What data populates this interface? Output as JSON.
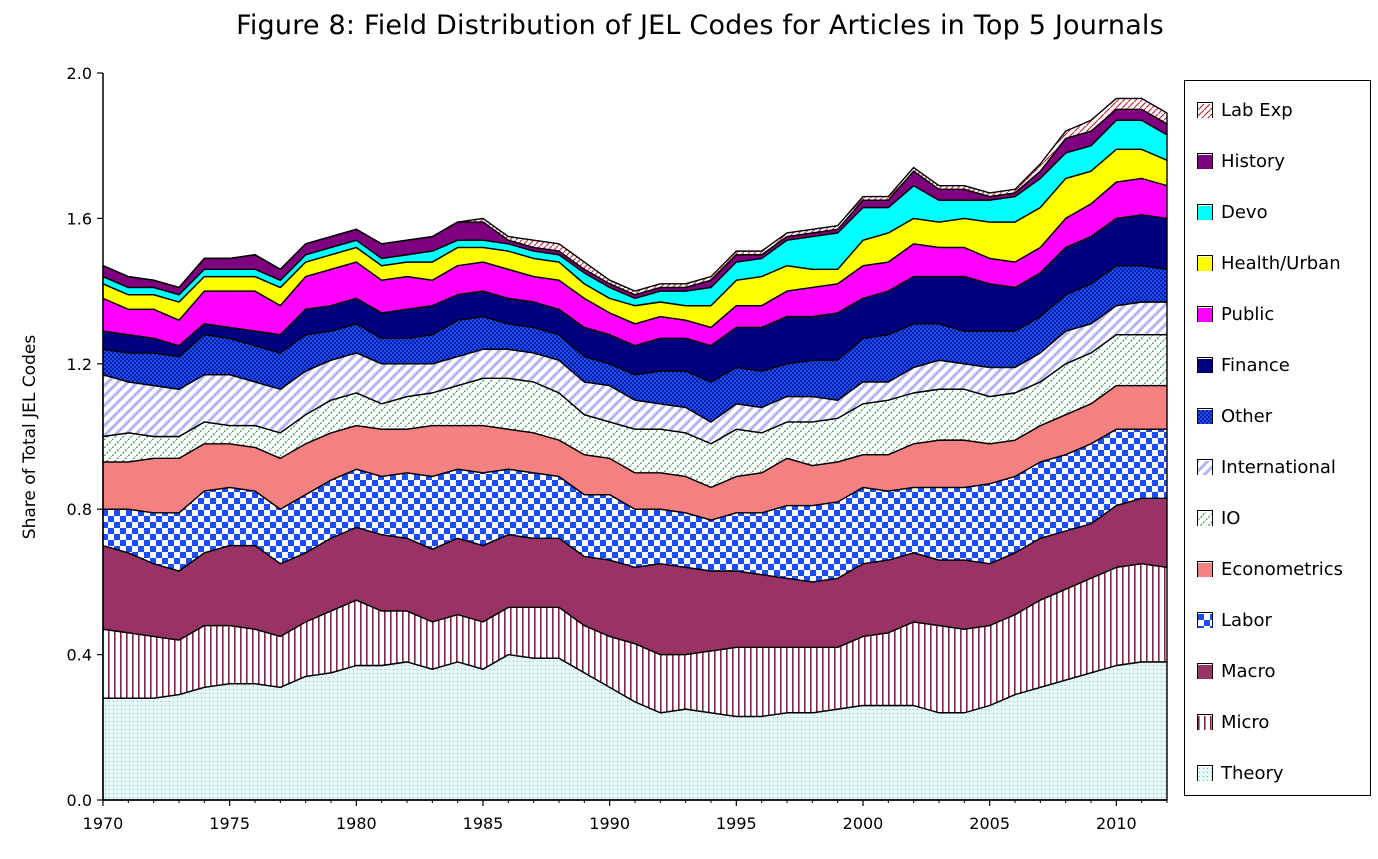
{
  "chart_data": {
    "type": "area",
    "stacked": true,
    "title": "Figure 8: Field Distribution of JEL Codes for Articles in Top 5 Journals",
    "ylabel": "Share of Total JEL Codes",
    "xlabel": "",
    "xlim": [
      1970,
      2012
    ],
    "ylim": [
      0,
      2.0
    ],
    "x_ticks": [
      "1970",
      "1975",
      "1980",
      "1985",
      "1990",
      "1995",
      "2000",
      "2005",
      "2010"
    ],
    "y_ticks": [
      "0.0",
      "0.4",
      "0.8",
      "1.2",
      "1.6",
      "2.0"
    ],
    "legend_position": "right",
    "x": [
      1970,
      1971,
      1972,
      1973,
      1974,
      1975,
      1976,
      1977,
      1978,
      1979,
      1980,
      1981,
      1982,
      1983,
      1984,
      1985,
      1986,
      1987,
      1988,
      1989,
      1990,
      1991,
      1992,
      1993,
      1994,
      1995,
      1996,
      1997,
      1998,
      1999,
      2000,
      2001,
      2002,
      2003,
      2004,
      2005,
      2006,
      2007,
      2008,
      2009,
      2010,
      2011,
      2012
    ],
    "series": [
      {
        "name": "Theory",
        "values": [
          0.28,
          0.28,
          0.28,
          0.29,
          0.31,
          0.32,
          0.32,
          0.31,
          0.34,
          0.35,
          0.37,
          0.37,
          0.38,
          0.36,
          0.38,
          0.36,
          0.4,
          0.39,
          0.39,
          0.35,
          0.31,
          0.27,
          0.24,
          0.25,
          0.24,
          0.23,
          0.23,
          0.24,
          0.24,
          0.25,
          0.26,
          0.26,
          0.26,
          0.24,
          0.24,
          0.26,
          0.29,
          0.31,
          0.33,
          0.35,
          0.37,
          0.38,
          0.38
        ]
      },
      {
        "name": "Micro",
        "values": [
          0.19,
          0.18,
          0.17,
          0.15,
          0.17,
          0.16,
          0.15,
          0.14,
          0.15,
          0.17,
          0.18,
          0.15,
          0.14,
          0.13,
          0.13,
          0.13,
          0.13,
          0.14,
          0.14,
          0.13,
          0.14,
          0.16,
          0.16,
          0.15,
          0.17,
          0.19,
          0.19,
          0.18,
          0.18,
          0.17,
          0.19,
          0.2,
          0.23,
          0.24,
          0.23,
          0.22,
          0.22,
          0.24,
          0.25,
          0.26,
          0.27,
          0.27,
          0.26
        ]
      },
      {
        "name": "Macro",
        "values": [
          0.23,
          0.22,
          0.2,
          0.19,
          0.2,
          0.22,
          0.23,
          0.2,
          0.19,
          0.2,
          0.2,
          0.21,
          0.2,
          0.2,
          0.21,
          0.21,
          0.2,
          0.19,
          0.19,
          0.19,
          0.21,
          0.21,
          0.25,
          0.24,
          0.22,
          0.21,
          0.2,
          0.19,
          0.18,
          0.19,
          0.2,
          0.2,
          0.19,
          0.18,
          0.19,
          0.17,
          0.17,
          0.17,
          0.16,
          0.15,
          0.17,
          0.18,
          0.19
        ]
      },
      {
        "name": "Labor",
        "values": [
          0.1,
          0.12,
          0.14,
          0.16,
          0.17,
          0.16,
          0.15,
          0.15,
          0.16,
          0.16,
          0.16,
          0.16,
          0.18,
          0.2,
          0.19,
          0.2,
          0.18,
          0.18,
          0.17,
          0.17,
          0.18,
          0.16,
          0.15,
          0.15,
          0.14,
          0.16,
          0.17,
          0.2,
          0.21,
          0.21,
          0.21,
          0.19,
          0.18,
          0.2,
          0.2,
          0.22,
          0.21,
          0.21,
          0.21,
          0.22,
          0.21,
          0.19,
          0.19
        ]
      },
      {
        "name": "Econometrics",
        "values": [
          0.13,
          0.13,
          0.15,
          0.15,
          0.13,
          0.12,
          0.12,
          0.14,
          0.14,
          0.13,
          0.12,
          0.13,
          0.12,
          0.14,
          0.12,
          0.13,
          0.11,
          0.11,
          0.1,
          0.11,
          0.1,
          0.1,
          0.1,
          0.1,
          0.09,
          0.1,
          0.11,
          0.13,
          0.11,
          0.11,
          0.09,
          0.1,
          0.12,
          0.13,
          0.13,
          0.11,
          0.1,
          0.1,
          0.11,
          0.11,
          0.12,
          0.12,
          0.12
        ]
      },
      {
        "name": "IO",
        "values": [
          0.07,
          0.08,
          0.06,
          0.06,
          0.06,
          0.05,
          0.06,
          0.07,
          0.08,
          0.09,
          0.09,
          0.07,
          0.09,
          0.09,
          0.11,
          0.13,
          0.14,
          0.14,
          0.13,
          0.11,
          0.1,
          0.12,
          0.12,
          0.12,
          0.12,
          0.13,
          0.11,
          0.1,
          0.12,
          0.12,
          0.14,
          0.15,
          0.14,
          0.14,
          0.14,
          0.13,
          0.13,
          0.12,
          0.14,
          0.14,
          0.14,
          0.14,
          0.14
        ]
      },
      {
        "name": "International",
        "values": [
          0.17,
          0.14,
          0.14,
          0.13,
          0.13,
          0.14,
          0.12,
          0.12,
          0.12,
          0.11,
          0.11,
          0.11,
          0.09,
          0.08,
          0.08,
          0.08,
          0.08,
          0.08,
          0.09,
          0.09,
          0.1,
          0.08,
          0.07,
          0.07,
          0.06,
          0.07,
          0.07,
          0.07,
          0.07,
          0.05,
          0.06,
          0.05,
          0.07,
          0.08,
          0.07,
          0.08,
          0.07,
          0.08,
          0.09,
          0.08,
          0.08,
          0.09,
          0.09
        ]
      },
      {
        "name": "Other",
        "values": [
          0.07,
          0.08,
          0.09,
          0.09,
          0.11,
          0.1,
          0.1,
          0.1,
          0.1,
          0.08,
          0.08,
          0.07,
          0.07,
          0.08,
          0.1,
          0.09,
          0.07,
          0.07,
          0.07,
          0.07,
          0.06,
          0.07,
          0.09,
          0.1,
          0.11,
          0.1,
          0.1,
          0.09,
          0.1,
          0.11,
          0.12,
          0.13,
          0.12,
          0.1,
          0.09,
          0.1,
          0.1,
          0.1,
          0.1,
          0.11,
          0.11,
          0.1,
          0.09
        ]
      },
      {
        "name": "Finance",
        "values": [
          0.05,
          0.05,
          0.04,
          0.03,
          0.03,
          0.03,
          0.04,
          0.05,
          0.07,
          0.07,
          0.07,
          0.07,
          0.08,
          0.08,
          0.07,
          0.07,
          0.07,
          0.07,
          0.07,
          0.08,
          0.08,
          0.08,
          0.09,
          0.09,
          0.1,
          0.11,
          0.12,
          0.13,
          0.12,
          0.13,
          0.11,
          0.12,
          0.13,
          0.13,
          0.15,
          0.13,
          0.12,
          0.12,
          0.13,
          0.13,
          0.13,
          0.14,
          0.14
        ]
      },
      {
        "name": "Public",
        "values": [
          0.09,
          0.07,
          0.08,
          0.07,
          0.09,
          0.1,
          0.11,
          0.08,
          0.09,
          0.1,
          0.1,
          0.09,
          0.09,
          0.07,
          0.08,
          0.08,
          0.08,
          0.07,
          0.08,
          0.08,
          0.06,
          0.06,
          0.06,
          0.05,
          0.05,
          0.06,
          0.06,
          0.07,
          0.08,
          0.08,
          0.09,
          0.08,
          0.09,
          0.08,
          0.08,
          0.07,
          0.07,
          0.07,
          0.08,
          0.09,
          0.1,
          0.1,
          0.09
        ]
      },
      {
        "name": "Health/Urban",
        "values": [
          0.04,
          0.04,
          0.04,
          0.05,
          0.04,
          0.04,
          0.04,
          0.05,
          0.04,
          0.04,
          0.04,
          0.04,
          0.04,
          0.05,
          0.05,
          0.04,
          0.05,
          0.05,
          0.05,
          0.04,
          0.04,
          0.05,
          0.04,
          0.04,
          0.06,
          0.07,
          0.08,
          0.07,
          0.05,
          0.04,
          0.07,
          0.08,
          0.07,
          0.07,
          0.08,
          0.1,
          0.11,
          0.11,
          0.11,
          0.09,
          0.09,
          0.08,
          0.07
        ]
      },
      {
        "name": "Devo",
        "values": [
          0.02,
          0.02,
          0.02,
          0.02,
          0.02,
          0.02,
          0.02,
          0.02,
          0.02,
          0.02,
          0.02,
          0.02,
          0.02,
          0.03,
          0.02,
          0.02,
          0.02,
          0.02,
          0.02,
          0.03,
          0.03,
          0.02,
          0.03,
          0.04,
          0.05,
          0.05,
          0.05,
          0.07,
          0.09,
          0.1,
          0.09,
          0.07,
          0.09,
          0.06,
          0.05,
          0.06,
          0.07,
          0.08,
          0.07,
          0.07,
          0.08,
          0.08,
          0.07
        ]
      },
      {
        "name": "History",
        "values": [
          0.03,
          0.03,
          0.02,
          0.02,
          0.03,
          0.03,
          0.04,
          0.03,
          0.03,
          0.03,
          0.03,
          0.04,
          0.04,
          0.04,
          0.05,
          0.05,
          0.01,
          0.01,
          0.01,
          0.01,
          0.01,
          0.01,
          0.01,
          0.01,
          0.02,
          0.02,
          0.01,
          0.01,
          0.01,
          0.01,
          0.02,
          0.02,
          0.04,
          0.03,
          0.03,
          0.01,
          0.01,
          0.02,
          0.04,
          0.04,
          0.03,
          0.03,
          0.03
        ]
      },
      {
        "name": "Lab Exp",
        "values": [
          0,
          0,
          0,
          0,
          0,
          0,
          0,
          0,
          0,
          0,
          0,
          0,
          0,
          0,
          0,
          0.01,
          0.01,
          0.02,
          0.02,
          0.02,
          0.01,
          0.01,
          0.01,
          0.01,
          0.01,
          0.01,
          0.01,
          0.01,
          0.01,
          0.01,
          0.01,
          0.01,
          0.01,
          0.01,
          0.01,
          0.01,
          0.01,
          0.02,
          0.02,
          0.03,
          0.03,
          0.03,
          0.03
        ]
      }
    ],
    "styles": {
      "Theory": {
        "bg": "#e6f7f7",
        "pattern": "dots",
        "fg": "#7dbdbd"
      },
      "Micro": {
        "bg": "#ffffff",
        "pattern": "vlines",
        "fg": "#8b2046"
      },
      "Macro": {
        "bg": "#993366",
        "pattern": "none",
        "fg": "#993366"
      },
      "Labor": {
        "bg": "#ffffff",
        "pattern": "checker",
        "fg": "#1a4dff"
      },
      "Econometrics": {
        "bg": "#f48181",
        "pattern": "none",
        "fg": "#f48181"
      },
      "IO": {
        "bg": "#ffffff",
        "pattern": "wavy",
        "fg": "#3f9a5e"
      },
      "International": {
        "bg": "#ffffff",
        "pattern": "diag",
        "fg": "#b4b4ee"
      },
      "Other": {
        "bg": "#1a4dff",
        "pattern": "darkdots",
        "fg": "#0a1f99"
      },
      "Finance": {
        "bg": "#00007f",
        "pattern": "none",
        "fg": "#00007f"
      },
      "Public": {
        "bg": "#ff00ff",
        "pattern": "none",
        "fg": "#ff00ff"
      },
      "Health/Urban": {
        "bg": "#ffff00",
        "pattern": "none",
        "fg": "#ffff00"
      },
      "Devo": {
        "bg": "#00ffff",
        "pattern": "none",
        "fg": "#00ffff"
      },
      "History": {
        "bg": "#7f007f",
        "pattern": "none",
        "fg": "#7f007f"
      },
      "Lab Exp": {
        "bg": "#ffffff",
        "pattern": "hatch",
        "fg": "#c03040"
      }
    }
  },
  "legend": {
    "items": [
      {
        "label": "Lab Exp"
      },
      {
        "label": "History"
      },
      {
        "label": "Devo"
      },
      {
        "label": "Health/Urban"
      },
      {
        "label": "Public"
      },
      {
        "label": "Finance"
      },
      {
        "label": "Other"
      },
      {
        "label": "International"
      },
      {
        "label": "IO"
      },
      {
        "label": "Econometrics"
      },
      {
        "label": "Labor"
      },
      {
        "label": "Macro"
      },
      {
        "label": "Micro"
      },
      {
        "label": "Theory"
      }
    ]
  }
}
